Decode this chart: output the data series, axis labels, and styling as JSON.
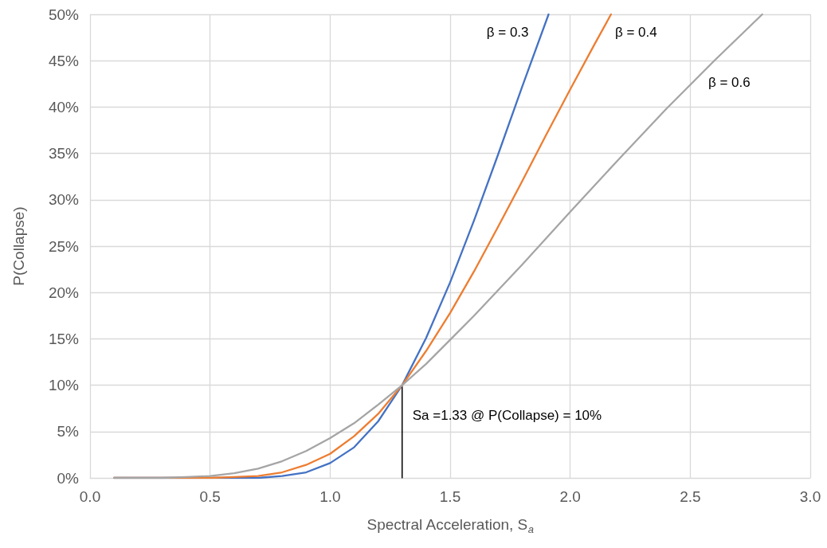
{
  "chart_data": {
    "type": "line",
    "xlabel": "Spectral Acceleration, S$_{a}$",
    "ylabel": "P(Collapse)",
    "series": [
      {
        "name": "β = 0.3",
        "color": "#4472c4",
        "x": [
          0.1,
          0.5,
          0.7,
          0.8,
          0.9,
          1.0,
          1.1,
          1.2,
          1.3,
          1.4,
          1.5,
          1.6,
          1.7,
          1.8,
          1.91
        ],
        "values": [
          0,
          0,
          0,
          0.2,
          0.6,
          1.6,
          3.3,
          6.1,
          10,
          15.1,
          21.1,
          27.8,
          34.9,
          42.2,
          50
        ]
      },
      {
        "name": "β = 0.4",
        "color": "#ed7d31",
        "x": [
          0.1,
          0.5,
          0.6,
          0.7,
          0.8,
          0.9,
          1.0,
          1.1,
          1.2,
          1.3,
          1.4,
          1.5,
          1.6,
          1.7,
          1.8,
          1.9,
          2.0,
          2.1,
          2.17
        ],
        "values": [
          0,
          0,
          0.1,
          0.2,
          0.6,
          1.4,
          2.6,
          4.5,
          6.9,
          10,
          13.7,
          17.8,
          22.3,
          27.1,
          32.0,
          37.0,
          41.9,
          46.7,
          50
        ]
      },
      {
        "name": "β = 0.6",
        "color": "#a5a5a5",
        "x": [
          0.1,
          0.3,
          0.4,
          0.5,
          0.6,
          0.7,
          0.8,
          0.9,
          1.0,
          1.1,
          1.2,
          1.3,
          1.4,
          1.5,
          1.6,
          1.8,
          2.0,
          2.2,
          2.4,
          2.6,
          2.8
        ],
        "values": [
          0,
          0,
          0.1,
          0.2,
          0.5,
          1.0,
          1.8,
          2.9,
          4.3,
          5.9,
          7.9,
          10,
          12.3,
          14.9,
          17.5,
          23.0,
          28.7,
          34.3,
          39.8,
          45.0,
          50
        ]
      },
      {
        "color": "#000000",
        "x": [
          1.3,
          1.3
        ],
        "values": [
          0,
          10
        ]
      }
    ],
    "xlim": [
      0,
      3
    ],
    "xticks": [
      {
        "value": 0,
        "label": "0.0"
      },
      {
        "value": 0.5,
        "label": "0.5"
      },
      {
        "value": 1,
        "label": "1.0"
      },
      {
        "value": 1.5,
        "label": "1.5"
      },
      {
        "value": 2,
        "label": "2.0"
      },
      {
        "value": 2.5,
        "label": "2.5"
      },
      {
        "value": 3,
        "label": "3.0"
      }
    ],
    "ylim": [
      0,
      50
    ],
    "yticks": [
      {
        "value": 0,
        "label": "0%"
      },
      {
        "value": 5,
        "label": "5%"
      },
      {
        "value": 10,
        "label": "10%"
      },
      {
        "value": 15,
        "label": "15%"
      },
      {
        "value": 20,
        "label": "20%"
      },
      {
        "value": 25,
        "label": "25%"
      },
      {
        "value": 30,
        "label": "30%"
      },
      {
        "value": 35,
        "label": "35%"
      },
      {
        "value": 40,
        "label": "40%"
      },
      {
        "value": 45,
        "label": "45%"
      },
      {
        "value": 50,
        "label": "50%"
      }
    ],
    "annotations": [
      {
        "text": "Sa =1.33 @ P(Collapse) = 10%",
        "x": 1.3,
        "y": 10
      }
    ],
    "grid": true,
    "legend": false,
    "marker": "none",
    "line_style": "solid"
  }
}
